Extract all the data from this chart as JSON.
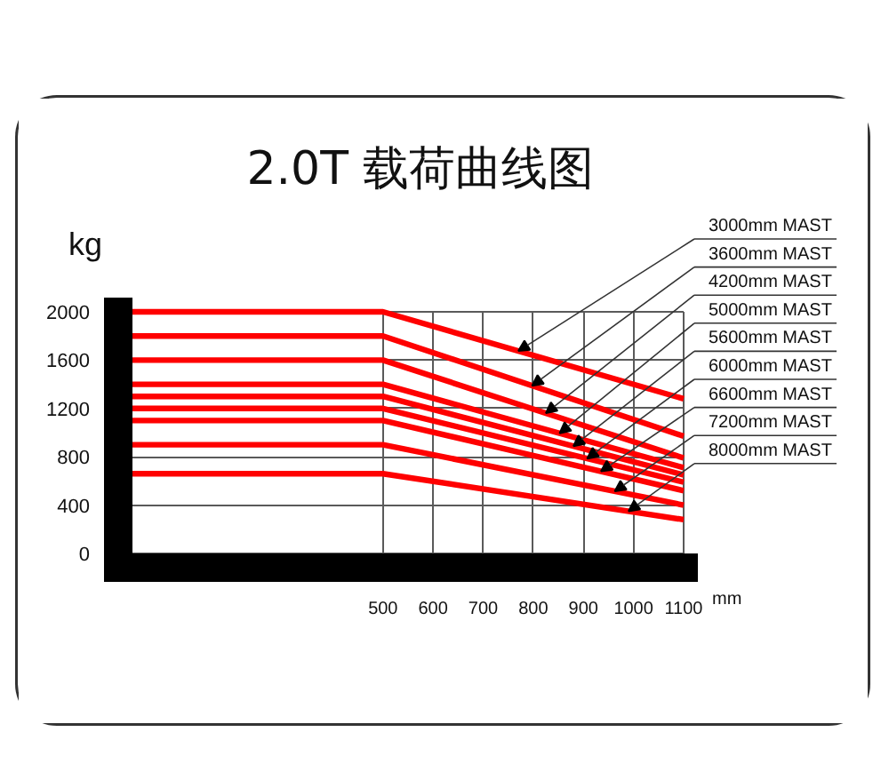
{
  "chart_data": {
    "type": "line",
    "title": "2.0T 载荷曲线图",
    "xlabel": "mm",
    "ylabel": "kg",
    "x": [
      0,
      500,
      1100
    ],
    "series": [
      {
        "name": "3000mm MAST",
        "color": "#ff0000",
        "values": [
          2000,
          2000,
          1280
        ]
      },
      {
        "name": "3600mm MAST",
        "color": "#ff0000",
        "values": [
          1800,
          1800,
          970
        ]
      },
      {
        "name": "4200mm MAST",
        "color": "#ff0000",
        "values": [
          1600,
          1600,
          790
        ]
      },
      {
        "name": "5000mm MAST",
        "color": "#ff0000",
        "values": [
          1400,
          1400,
          710
        ]
      },
      {
        "name": "5600mm MAST",
        "color": "#ff0000",
        "values": [
          1300,
          1300,
          650
        ]
      },
      {
        "name": "6000mm MAST",
        "color": "#ff0000",
        "values": [
          1200,
          1200,
          590
        ]
      },
      {
        "name": "6600mm MAST",
        "color": "#ff0000",
        "values": [
          1100,
          1100,
          520
        ]
      },
      {
        "name": "7200mm MAST",
        "color": "#ff0000",
        "values": [
          900,
          900,
          400
        ]
      },
      {
        "name": "8000mm MAST",
        "color": "#ff0000",
        "values": [
          660,
          660,
          280
        ]
      }
    ],
    "xlim": [
      0,
      1100
    ],
    "ylim": [
      0,
      2000
    ],
    "xticks": [
      500,
      600,
      700,
      800,
      900,
      1000,
      1100
    ],
    "yticks": [
      0,
      400,
      800,
      1200,
      1600,
      2000
    ],
    "grid": true
  }
}
